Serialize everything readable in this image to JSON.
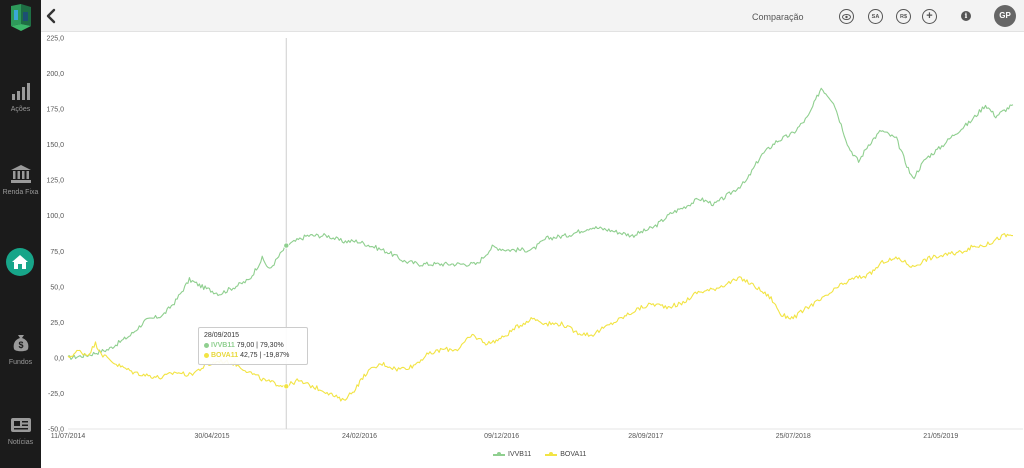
{
  "topbar": {
    "compare_label": "Comparação",
    "buttons": [
      {
        "icon": "eye-icon",
        "text": ""
      },
      {
        "icon": "sa-icon",
        "text": "SA"
      },
      {
        "icon": "rs-icon",
        "text": "R$"
      },
      {
        "icon": "plus-icon",
        "text": "+"
      }
    ],
    "info_label": "i",
    "avatar_initials": "GP"
  },
  "sidebar": {
    "items": [
      {
        "label": "Ações",
        "icon": "bar-chart-icon"
      },
      {
        "label": "Renda Fixa",
        "icon": "bank-icon"
      },
      {
        "label": "",
        "icon": "home-icon"
      },
      {
        "label": "Fundos",
        "icon": "money-bag-icon"
      },
      {
        "label": "Notícias",
        "icon": "newspaper-icon"
      }
    ],
    "accent": "#17a589"
  },
  "tooltip": {
    "date": "28/09/2015",
    "rows": [
      {
        "name": "IVVB11",
        "value": "79,00",
        "pct": "79,30%"
      },
      {
        "name": "BOVA11",
        "value": "42,75",
        "pct": "-19,87%"
      }
    ]
  },
  "chart_data": {
    "type": "line",
    "ylim": [
      -50,
      225
    ],
    "y_ticks": [
      "225,0",
      "200,0",
      "175,0",
      "150,0",
      "125,0",
      "100,0",
      "75,0",
      "50,0",
      "25,0",
      "0,0",
      "-25,0",
      "-50,0"
    ],
    "x_ticks": [
      "11/07/2014",
      "30/04/2015",
      "24/02/2016",
      "09/12/2016",
      "28/09/2017",
      "25/07/2018",
      "21/05/2019"
    ],
    "xlim": [
      "2014-07-11",
      "2019-10-15"
    ],
    "crosshair_date": "2015-09-28",
    "series": [
      {
        "name": "IVVB11",
        "color": "#8fcf8f",
        "points": [
          [
            "2014-07-11",
            0
          ],
          [
            "2014-08-20",
            2
          ],
          [
            "2014-10-01",
            6
          ],
          [
            "2014-11-15",
            16
          ],
          [
            "2014-12-15",
            26
          ],
          [
            "2015-01-20",
            30
          ],
          [
            "2015-02-15",
            40
          ],
          [
            "2015-03-15",
            55
          ],
          [
            "2015-04-10",
            50
          ],
          [
            "2015-05-15",
            45
          ],
          [
            "2015-06-15",
            50
          ],
          [
            "2015-07-15",
            55
          ],
          [
            "2015-08-10",
            70
          ],
          [
            "2015-08-25",
            62
          ],
          [
            "2015-09-28",
            79
          ],
          [
            "2015-11-10",
            86
          ],
          [
            "2015-12-20",
            86
          ],
          [
            "2016-01-20",
            82
          ],
          [
            "2016-02-20",
            82
          ],
          [
            "2016-03-25",
            78
          ],
          [
            "2016-04-25",
            74
          ],
          [
            "2016-05-25",
            68
          ],
          [
            "2016-06-25",
            66
          ],
          [
            "2016-07-25",
            66
          ],
          [
            "2016-09-10",
            66
          ],
          [
            "2016-10-20",
            66
          ],
          [
            "2016-11-20",
            78
          ],
          [
            "2016-12-20",
            76
          ],
          [
            "2017-02-10",
            76
          ],
          [
            "2017-03-10",
            84
          ],
          [
            "2017-04-20",
            86
          ],
          [
            "2017-06-10",
            92
          ],
          [
            "2017-07-15",
            90
          ],
          [
            "2017-09-01",
            86
          ],
          [
            "2017-10-15",
            92
          ],
          [
            "2017-11-20",
            102
          ],
          [
            "2017-12-15",
            106
          ],
          [
            "2018-01-15",
            112
          ],
          [
            "2018-02-15",
            108
          ],
          [
            "2018-03-20",
            116
          ],
          [
            "2018-04-20",
            124
          ],
          [
            "2018-05-20",
            142
          ],
          [
            "2018-06-20",
            152
          ],
          [
            "2018-07-25",
            158
          ],
          [
            "2018-08-25",
            170
          ],
          [
            "2018-09-20",
            190
          ],
          [
            "2018-10-15",
            180
          ],
          [
            "2018-11-15",
            148
          ],
          [
            "2018-12-05",
            138
          ],
          [
            "2018-12-25",
            150
          ],
          [
            "2019-01-20",
            160
          ],
          [
            "2019-02-20",
            154
          ],
          [
            "2019-03-10",
            138
          ],
          [
            "2019-03-25",
            126
          ],
          [
            "2019-04-20",
            140
          ],
          [
            "2019-05-20",
            148
          ],
          [
            "2019-06-20",
            158
          ],
          [
            "2019-07-20",
            166
          ],
          [
            "2019-08-20",
            178
          ],
          [
            "2019-09-10",
            170
          ],
          [
            "2019-10-15",
            178
          ]
        ]
      },
      {
        "name": "BOVA11",
        "color": "#f2e444",
        "points": [
          [
            "2014-07-11",
            0
          ],
          [
            "2014-08-01",
            5
          ],
          [
            "2014-08-20",
            2
          ],
          [
            "2014-09-05",
            10
          ],
          [
            "2014-09-20",
            2
          ],
          [
            "2014-10-20",
            -5
          ],
          [
            "2014-11-20",
            -10
          ],
          [
            "2014-12-15",
            -12
          ],
          [
            "2015-01-15",
            -14
          ],
          [
            "2015-02-15",
            -10
          ],
          [
            "2015-03-15",
            -12
          ],
          [
            "2015-04-15",
            -6
          ],
          [
            "2015-05-15",
            -2
          ],
          [
            "2015-06-15",
            -4
          ],
          [
            "2015-07-15",
            -10
          ],
          [
            "2015-08-15",
            -16
          ],
          [
            "2015-09-28",
            -20
          ],
          [
            "2015-10-20",
            -16
          ],
          [
            "2015-11-20",
            -20
          ],
          [
            "2015-12-20",
            -24
          ],
          [
            "2016-01-20",
            -30
          ],
          [
            "2016-02-10",
            -24
          ],
          [
            "2016-03-10",
            -10
          ],
          [
            "2016-04-10",
            -4
          ],
          [
            "2016-05-10",
            -8
          ],
          [
            "2016-06-10",
            -6
          ],
          [
            "2016-07-10",
            2
          ],
          [
            "2016-08-10",
            6
          ],
          [
            "2016-09-10",
            6
          ],
          [
            "2016-10-10",
            16
          ],
          [
            "2016-11-10",
            10
          ],
          [
            "2016-12-10",
            14
          ],
          [
            "2017-01-10",
            22
          ],
          [
            "2017-02-10",
            28
          ],
          [
            "2017-03-10",
            24
          ],
          [
            "2017-04-10",
            24
          ],
          [
            "2017-05-10",
            18
          ],
          [
            "2017-06-10",
            16
          ],
          [
            "2017-07-10",
            22
          ],
          [
            "2017-08-10",
            28
          ],
          [
            "2017-09-10",
            34
          ],
          [
            "2017-10-10",
            38
          ],
          [
            "2017-11-10",
            36
          ],
          [
            "2017-12-10",
            38
          ],
          [
            "2018-01-10",
            46
          ],
          [
            "2018-02-10",
            48
          ],
          [
            "2018-03-10",
            52
          ],
          [
            "2018-04-10",
            56
          ],
          [
            "2018-05-10",
            50
          ],
          [
            "2018-06-10",
            42
          ],
          [
            "2018-07-01",
            30
          ],
          [
            "2018-07-25",
            28
          ],
          [
            "2018-08-25",
            36
          ],
          [
            "2018-09-25",
            42
          ],
          [
            "2018-10-25",
            50
          ],
          [
            "2018-11-25",
            56
          ],
          [
            "2018-12-25",
            58
          ],
          [
            "2019-01-25",
            68
          ],
          [
            "2019-02-25",
            70
          ],
          [
            "2019-03-25",
            64
          ],
          [
            "2019-04-25",
            70
          ],
          [
            "2019-05-25",
            72
          ],
          [
            "2019-06-25",
            74
          ],
          [
            "2019-07-25",
            78
          ],
          [
            "2019-08-25",
            80
          ],
          [
            "2019-09-25",
            86
          ],
          [
            "2019-10-15",
            86
          ]
        ]
      }
    ]
  }
}
